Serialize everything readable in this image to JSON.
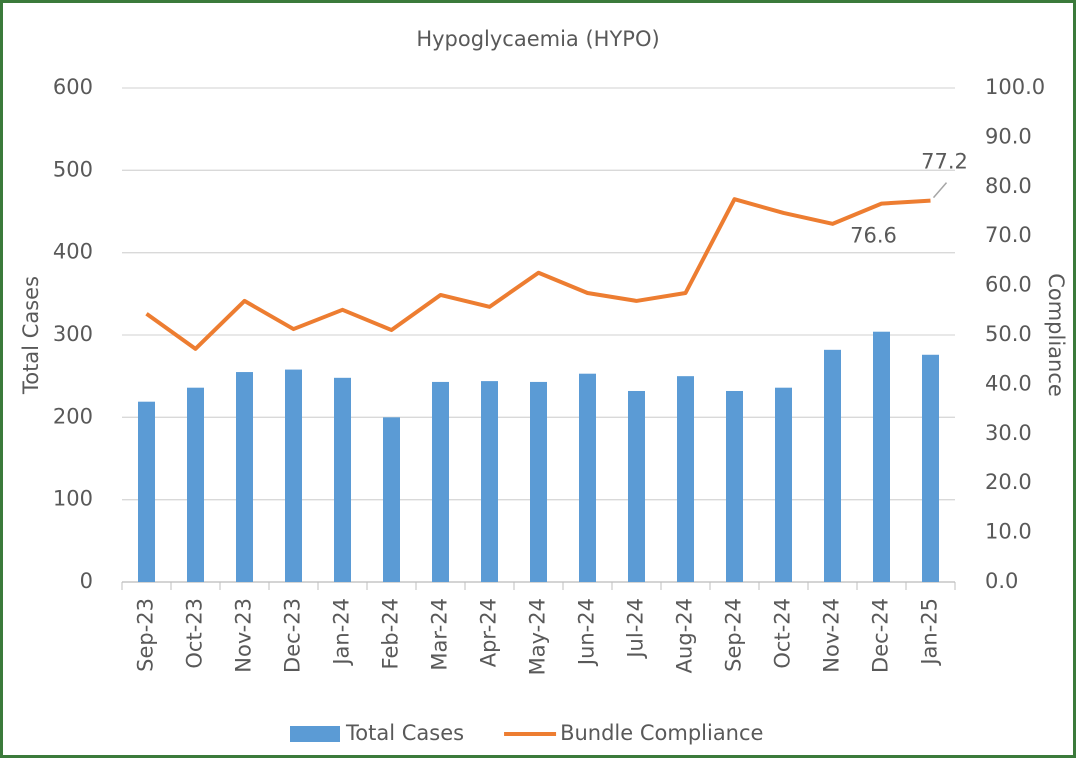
{
  "chart_data": {
    "type": "bar_line",
    "title": "Hypoglycaemia (HYPO)",
    "y_label": "Total Cases",
    "y2_label": "Compliance",
    "categories": [
      "Sep-23",
      "Oct-23",
      "Nov-23",
      "Dec-23",
      "Jan-24",
      "Feb-24",
      "Mar-24",
      "Apr-24",
      "May-24",
      "Jun-24",
      "Jul-24",
      "Aug-24",
      "Sep-24",
      "Oct-24",
      "Nov-24",
      "Dec-24",
      "Jan-25"
    ],
    "series": [
      {
        "name": "Total Cases",
        "type": "bar",
        "color": "#5b9bd5",
        "values": [
          219,
          236,
          255,
          258,
          248,
          200,
          243,
          244,
          243,
          253,
          232,
          250,
          232,
          236,
          282,
          304,
          276
        ]
      },
      {
        "name": "Bundle Compliance",
        "type": "line",
        "axis": "y2",
        "color": "#ed7d31",
        "values": [
          54.3,
          47.2,
          56.9,
          51.2,
          55.1,
          51.0,
          58.1,
          55.7,
          62.6,
          58.5,
          56.9,
          58.5,
          77.5,
          74.7,
          72.5,
          76.6,
          77.2
        ],
        "value_labels": [
          null,
          null,
          null,
          null,
          null,
          null,
          null,
          null,
          null,
          null,
          null,
          null,
          null,
          null,
          null,
          "76.6",
          "77.2"
        ]
      }
    ],
    "ylim": [
      0,
      600
    ],
    "yticks": [
      0,
      100,
      200,
      300,
      400,
      500,
      600
    ],
    "y2lim": [
      0,
      100
    ],
    "y2ticks": [
      {
        "value": 0,
        "label": "0.0"
      },
      {
        "value": 10,
        "label": "10.0"
      },
      {
        "value": 20,
        "label": "20.0"
      },
      {
        "value": 30,
        "label": "30.0"
      },
      {
        "value": 40,
        "label": "40.0"
      },
      {
        "value": 50,
        "label": "50.0"
      },
      {
        "value": 60,
        "label": "60.0"
      },
      {
        "value": 70,
        "label": "70.0"
      },
      {
        "value": 80,
        "label": "80.0"
      },
      {
        "value": 90,
        "label": "90.0"
      },
      {
        "value": 100,
        "label": "100.0"
      }
    ],
    "grid": true,
    "legend": "bottom"
  }
}
